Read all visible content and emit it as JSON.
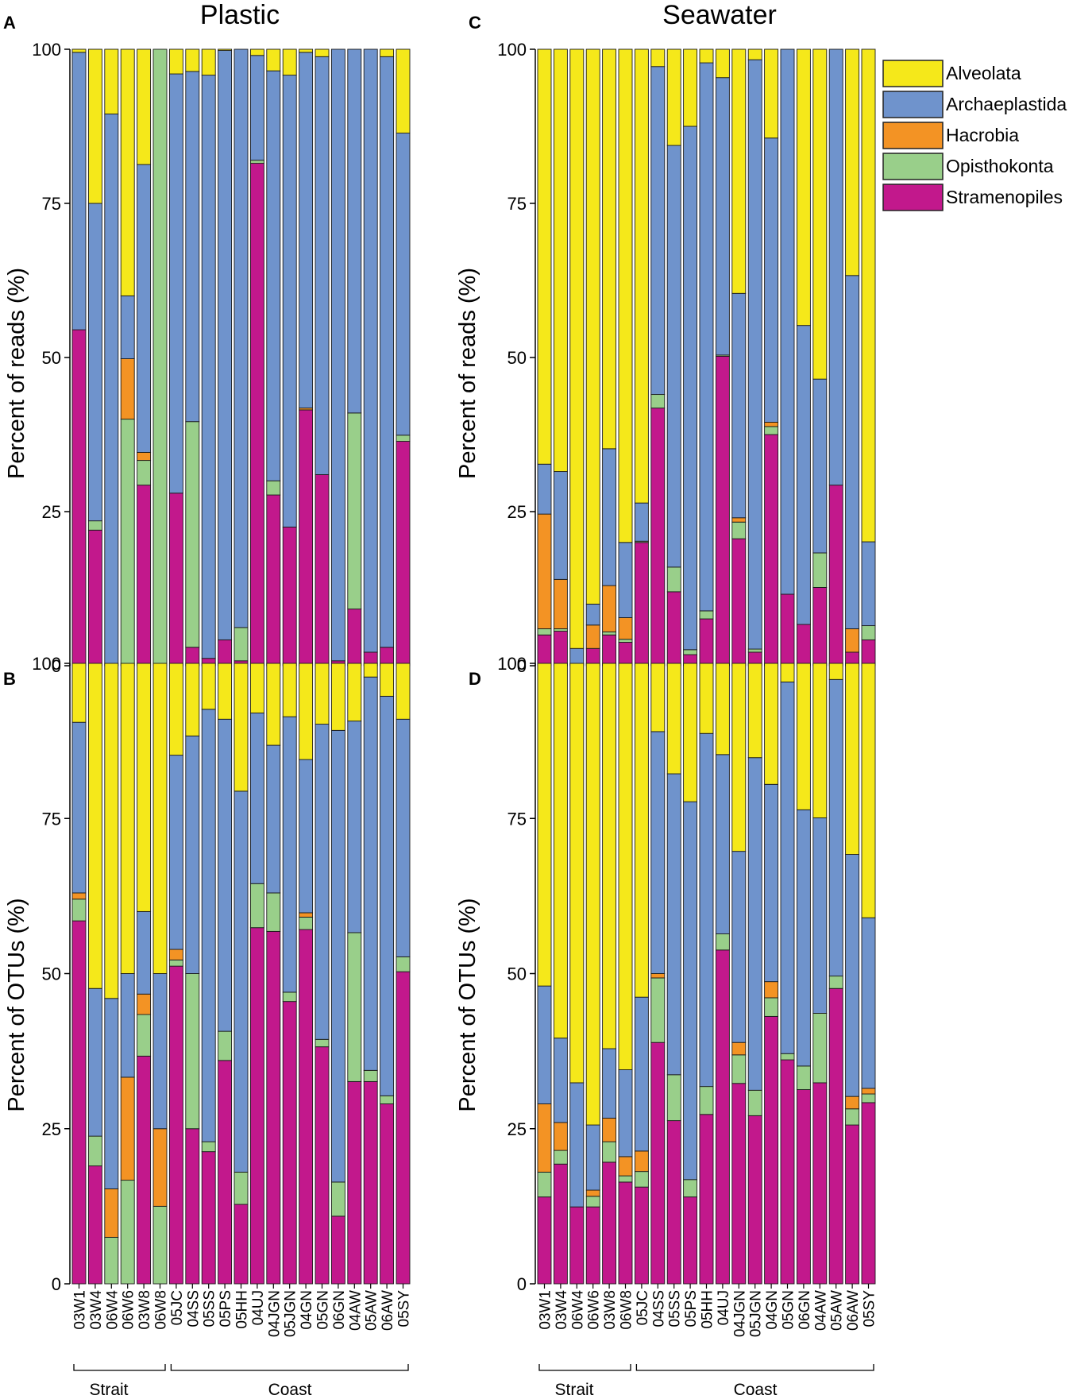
{
  "chart_data": {
    "type": "bar",
    "stacked": true,
    "legend": {
      "placement": "top-right",
      "entries": [
        {
          "name": "Alveolata",
          "color": "#f5e81a"
        },
        {
          "name": "Archaeplastida",
          "color": "#6f93cc"
        },
        {
          "name": "Hacrobia",
          "color": "#f39324"
        },
        {
          "name": "Opisthokonta",
          "color": "#99cf8a"
        },
        {
          "name": "Stramenopiles",
          "color": "#c2188c"
        }
      ]
    },
    "categories": [
      "03W1",
      "03W4",
      "06W4",
      "06W6",
      "03W8",
      "06W8",
      "05JC",
      "04SS",
      "05SS",
      "05PS",
      "05HH",
      "04UJ",
      "04JGN",
      "05JGN",
      "04GN",
      "05GN",
      "06GN",
      "04AW",
      "05AW",
      "06AW",
      "05SY"
    ],
    "groups": [
      {
        "label": "Strait",
        "count": 6
      },
      {
        "label": "Coast",
        "count": 15
      }
    ],
    "column_titles": [
      "Plastic",
      "Seawater"
    ],
    "ylim": [
      0,
      100
    ],
    "yticks": [
      "0",
      "25",
      "50",
      "75",
      "100"
    ],
    "panels": [
      {
        "id": "A",
        "title": "Plastic",
        "ylabel": "Percent of reads (%)",
        "series": [
          {
            "name": "Stramenopiles",
            "values": [
              54.5,
              22,
              0,
              0,
              29.3,
              0,
              28,
              3,
              1.2,
              4.2,
              0.8,
              81.5,
              27.7,
              22.5,
              41.5,
              31,
              0.8,
              9.2,
              2.2,
              3,
              36.4
            ]
          },
          {
            "name": "Opisthokonta",
            "values": [
              0,
              1.5,
              0,
              40,
              4,
              100,
              0,
              36.6,
              0,
              0,
              5.4,
              0.5,
              2.3,
              0,
              0,
              0,
              0,
              31.8,
              0,
              0,
              1
            ]
          },
          {
            "name": "Hacrobia",
            "values": [
              0,
              0,
              0,
              9.8,
              1.3,
              0,
              0,
              0,
              0,
              0,
              0,
              0,
              0,
              0,
              0.3,
              0,
              0,
              0,
              0,
              0,
              0
            ]
          },
          {
            "name": "Archaeplastida",
            "values": [
              45,
              51.5,
              89.5,
              10.2,
              46.7,
              0,
              68,
              56.8,
              94.6,
              95.6,
              93.8,
              17,
              66.5,
              73.3,
              57.7,
              67.8,
              99.2,
              59,
              97.8,
              95.8,
              49
            ]
          },
          {
            "name": "Alveolata",
            "values": [
              0.5,
              25,
              10.5,
              40,
              18.7,
              0,
              4,
              3.6,
              4.2,
              0.2,
              0,
              1,
              3.5,
              4.2,
              0.5,
              1.2,
              0,
              0,
              0,
              1.2,
              13.6
            ]
          }
        ]
      },
      {
        "id": "B",
        "title": "",
        "ylabel": "Percent of OTUs (%)",
        "series": [
          {
            "name": "Stramenopiles",
            "values": [
              58.5,
              19,
              0,
              0,
              36.7,
              0,
              51.2,
              25,
              21.3,
              36,
              12.8,
              57.4,
              56.8,
              45.5,
              57.1,
              38.2,
              10.9,
              32.6,
              32.6,
              29,
              50.3
            ]
          },
          {
            "name": "Opisthokonta",
            "values": [
              3.5,
              4.8,
              7.5,
              16.7,
              6.7,
              12.5,
              1,
              25,
              1.6,
              4.7,
              5.2,
              7.1,
              6.2,
              1.5,
              2,
              1.2,
              5.5,
              24,
              1.8,
              1.3,
              2.4
            ]
          },
          {
            "name": "Hacrobia",
            "values": [
              1,
              0,
              7.8,
              16.6,
              3.3,
              12.5,
              1.7,
              0,
              0,
              0,
              0,
              0,
              0,
              0,
              0.7,
              0,
              0,
              0,
              0,
              0,
              0
            ]
          },
          {
            "name": "Archaeplastida",
            "values": [
              27.5,
              23.8,
              30.7,
              16.7,
              13.3,
              25,
              31.3,
              38.3,
              69.7,
              50.3,
              61.4,
              27.5,
              23.8,
              44.4,
              24.7,
              50.8,
              72.8,
              34.1,
              63.4,
              64.4,
              38.3
            ]
          },
          {
            "name": "Alveolata",
            "values": [
              9.5,
              52.4,
              54,
              50,
              40,
              50,
              14.8,
              11.7,
              7.4,
              9,
              20.6,
              8,
              13.2,
              8.6,
              15.5,
              9.8,
              10.8,
              9.3,
              2.2,
              5.3,
              9
            ]
          }
        ]
      },
      {
        "id": "C",
        "title": "Seawater",
        "ylabel": "Percent of reads (%)",
        "series": [
          {
            "name": "Stramenopiles",
            "values": [
              5,
              5.6,
              0.3,
              2.8,
              5,
              3.8,
              20,
              41.8,
              12,
              1.8,
              7.6,
              50.2,
              20.6,
              2.2,
              37.5,
              11.6,
              6.7,
              12.7,
              29.3,
              2.2,
              4.2
            ]
          },
          {
            "name": "Opisthokonta",
            "values": [
              1,
              0.4,
              0,
              0,
              0.5,
              0.5,
              0.2,
              2.2,
              4,
              0.8,
              1.3,
              0.2,
              2.7,
              0.5,
              1.3,
              0,
              0,
              5.6,
              0,
              0,
              2.3
            ]
          },
          {
            "name": "Hacrobia",
            "values": [
              18.6,
              8,
              0,
              3.8,
              7.5,
              3.5,
              0,
              0,
              0,
              0,
              0,
              0,
              0.7,
              0,
              0.7,
              0,
              0,
              0,
              0,
              3.8,
              0
            ]
          },
          {
            "name": "Archaeplastida",
            "values": [
              8.1,
              17.5,
              2.5,
              3.4,
              22.2,
              12.2,
              6.2,
              53.2,
              68.4,
              84.9,
              88.9,
              45,
              36.4,
              95.6,
              46.1,
              88.4,
              48.5,
              28.2,
              70.7,
              57.3,
              13.6
            ]
          },
          {
            "name": "Alveolata",
            "values": [
              67.3,
              68.5,
              97.2,
              90,
              64.8,
              80,
              73.6,
              2.8,
              15.6,
              12.5,
              2.2,
              4.6,
              39.6,
              1.7,
              14.4,
              0,
              44.8,
              53.5,
              0,
              36.7,
              79.9
            ]
          }
        ]
      },
      {
        "id": "D",
        "title": "",
        "ylabel": "Percent of OTUs (%)",
        "series": [
          {
            "name": "Stramenopiles",
            "values": [
              14,
              19.3,
              12.4,
              12.4,
              19.6,
              16.4,
              15.6,
              38.9,
              26.3,
              14,
              27.3,
              53.8,
              32.3,
              27.1,
              43.1,
              36.1,
              31.3,
              32.4,
              47.6,
              25.6,
              29.2
            ]
          },
          {
            "name": "Opisthokonta",
            "values": [
              4,
              2.2,
              0,
              1.7,
              3.3,
              1,
              2.5,
              10.4,
              7.4,
              2.8,
              4.5,
              2.6,
              4.6,
              4.1,
              3,
              1,
              3.8,
              11.2,
              2,
              2.6,
              1.4
            ]
          },
          {
            "name": "Hacrobia",
            "values": [
              11,
              4.5,
              0,
              1,
              3.8,
              3.1,
              3.3,
              0.7,
              0,
              0,
              0,
              0,
              2,
              0,
              2.6,
              0,
              0,
              0,
              0,
              2,
              0.9
            ]
          },
          {
            "name": "Archaeplastida",
            "values": [
              19,
              13.6,
              20,
              10.5,
              11.2,
              14,
              24.8,
              39,
              48.5,
              60.9,
              56.9,
              28.9,
              30.8,
              53.6,
              31.8,
              59.9,
              41.3,
              31.5,
              47.8,
              39,
              27.5
            ]
          },
          {
            "name": "Alveolata",
            "values": [
              52,
              60.4,
              67.6,
              74.4,
              62.1,
              65.5,
              53.8,
              11,
              17.8,
              22.3,
              11.3,
              14.7,
              30.3,
              15.2,
              19.5,
              3,
              23.6,
              24.9,
              2.6,
              30.8,
              41
            ]
          }
        ]
      }
    ]
  }
}
